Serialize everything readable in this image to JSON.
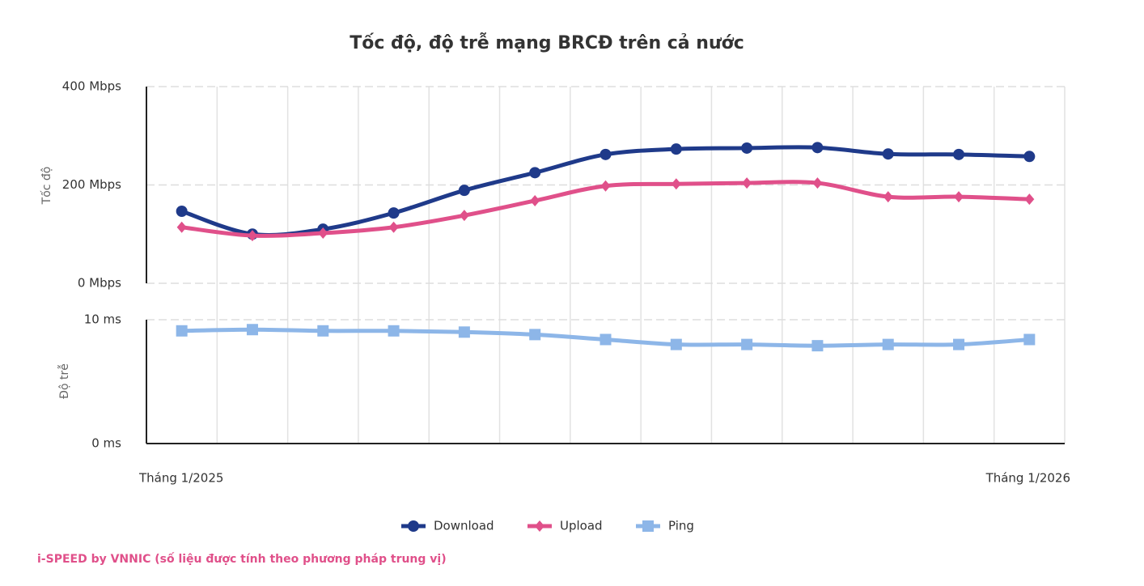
{
  "chart_data": {
    "type": "line",
    "title": "Tốc độ, độ trễ mạng BRCĐ trên cả nước",
    "ylabel": "Tốc độ",
    "y2label": "Độ trễ",
    "source": "i-SPEED by VNNIC (số liệu được tính theo phương pháp trung vị)",
    "categories": [
      "Tháng 1/2025",
      null,
      null,
      null,
      null,
      null,
      null,
      null,
      null,
      null,
      null,
      null,
      "Tháng 1/2026"
    ],
    "ylim": [
      0,
      400
    ],
    "yticks": [
      {
        "value": 0,
        "label": "0 Mbps"
      },
      {
        "value": 200,
        "label": "200 Mbps"
      },
      {
        "value": 400,
        "label": "400 Mbps"
      }
    ],
    "y2lim": [
      0,
      10
    ],
    "y2ticks": [
      {
        "value": 0,
        "label": "0 ms"
      },
      {
        "value": 10,
        "label": "10 ms"
      }
    ],
    "grid": true,
    "legend": "bottom",
    "series": [
      {
        "name": "Download",
        "color": "#1f3a8a",
        "marker": "circle",
        "values": [
          146.5,
          100,
          110,
          143,
          189,
          225,
          262,
          273,
          275,
          276,
          263,
          262,
          258
        ]
      },
      {
        "name": "Upload",
        "color": "#e0508a",
        "marker": "diamond",
        "values": [
          114,
          97,
          102,
          114,
          138,
          168,
          198,
          202,
          204,
          204,
          176,
          176,
          171
        ]
      },
      {
        "name": "Ping",
        "color": "#8db6e8",
        "marker": "square",
        "axis": "y2",
        "values": [
          9.1,
          9.2,
          9.1,
          9.1,
          9.0,
          8.8,
          8.4,
          8.0,
          8.0,
          7.9,
          8.0,
          8.0,
          8.4
        ]
      }
    ]
  }
}
